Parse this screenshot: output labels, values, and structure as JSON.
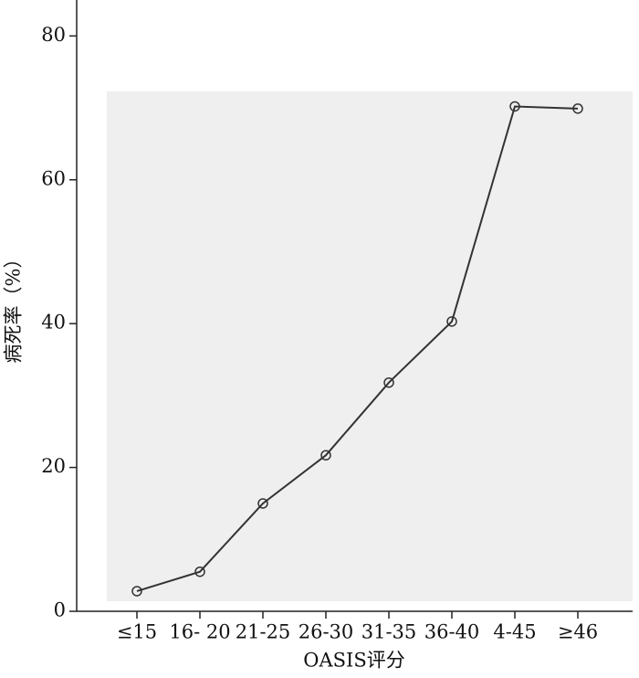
{
  "chart_data": {
    "type": "line",
    "x_label": "OASIS评分",
    "y_label": "病死率（%）",
    "categories": [
      "≤15",
      "16- 20",
      "21-25",
      "26-30",
      "31-35",
      "36-40",
      "4-45",
      "≥46"
    ],
    "series": [
      {
        "color": "#333333",
        "values": [
          2.8,
          5.5,
          15.0,
          21.7,
          31.8,
          40.3,
          70.2,
          69.9
        ]
      }
    ],
    "ylim": [
      0,
      85
    ],
    "yticks": [
      0,
      20,
      40,
      60,
      80
    ]
  }
}
